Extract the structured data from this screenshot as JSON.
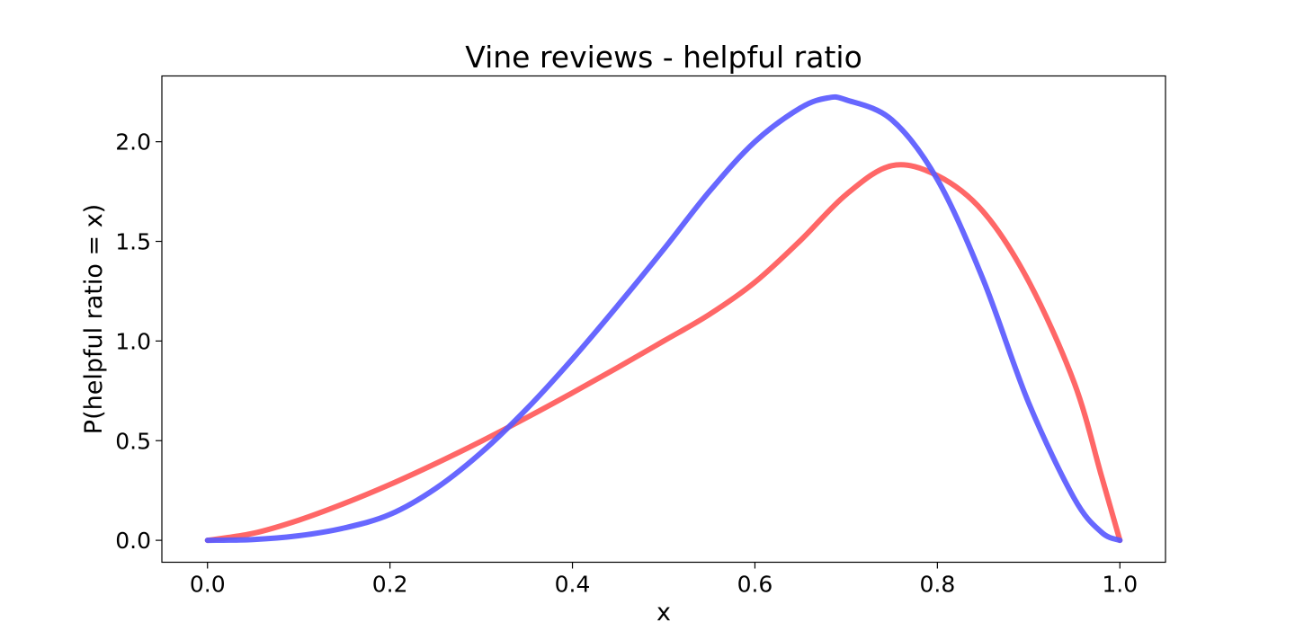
{
  "chart_data": {
    "type": "line",
    "title": "Vine reviews - helpful ratio",
    "xlabel": "x",
    "ylabel": "P(helpful ratio = x)",
    "xlim": [
      -0.05,
      1.05
    ],
    "ylim": [
      -0.11,
      2.33
    ],
    "xticks": [
      "0.0",
      "0.2",
      "0.4",
      "0.6",
      "0.8",
      "1.0"
    ],
    "yticks": [
      "0.0",
      "0.5",
      "1.0",
      "1.5",
      "2.0"
    ],
    "grid": false,
    "legend": "none",
    "series": [
      {
        "color": "#ff5a5a",
        "x": [
          0.0,
          0.05,
          0.1,
          0.15,
          0.2,
          0.25,
          0.3,
          0.35,
          0.4,
          0.45,
          0.5,
          0.55,
          0.6,
          0.65,
          0.7,
          0.75,
          0.8,
          0.85,
          0.9,
          0.95,
          0.98,
          1.0
        ],
        "y": [
          0.0,
          0.035,
          0.101,
          0.185,
          0.28,
          0.385,
          0.497,
          0.616,
          0.74,
          0.868,
          1.0,
          1.133,
          1.295,
          1.505,
          1.735,
          1.88,
          1.83,
          1.65,
          1.3,
          0.79,
          0.32,
          0.0
        ]
      },
      {
        "color": "#5a5aff",
        "x": [
          0.0,
          0.05,
          0.1,
          0.15,
          0.2,
          0.25,
          0.3,
          0.35,
          0.4,
          0.45,
          0.5,
          0.55,
          0.6,
          0.65,
          0.68,
          0.7,
          0.75,
          0.8,
          0.85,
          0.9,
          0.95,
          0.98,
          1.0
        ],
        "y": [
          0.0,
          0.004,
          0.023,
          0.062,
          0.13,
          0.26,
          0.44,
          0.66,
          0.91,
          1.18,
          1.46,
          1.75,
          2.0,
          2.17,
          2.22,
          2.21,
          2.11,
          1.81,
          1.31,
          0.69,
          0.21,
          0.04,
          0.0
        ]
      }
    ]
  }
}
